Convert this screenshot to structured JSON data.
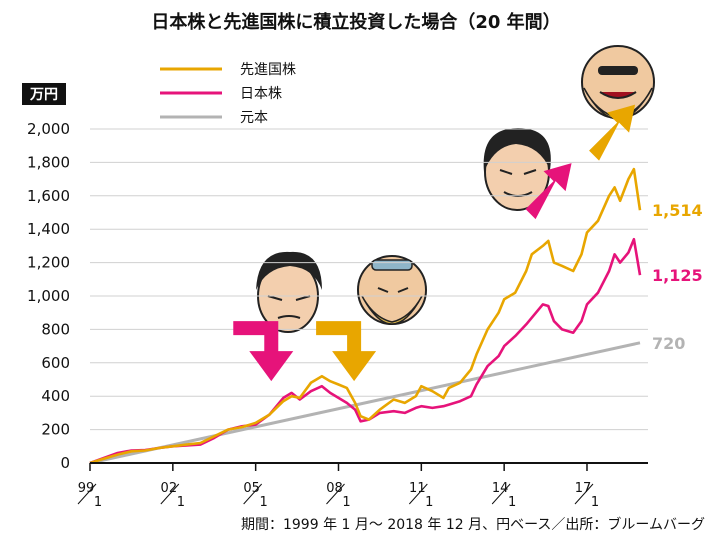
{
  "chart_data": {
    "type": "line",
    "title": "日本株と先進国株に積立投資した場合（20 年間）",
    "unit_label": "万円",
    "source_note": "期間：1999 年 1 月〜 2018 年 12 月、円ベース／出所：ブルームバーグ",
    "ylim": [
      0,
      2000
    ],
    "y_ticks": [
      "0",
      "200",
      "400",
      "600",
      "800",
      "1,000",
      "1,200",
      "1,400",
      "1,600",
      "1,800",
      "2,000"
    ],
    "y_tick_values": [
      0,
      200,
      400,
      600,
      800,
      1000,
      1200,
      1400,
      1600,
      1800,
      2000
    ],
    "x_ticks": [
      {
        "year": "99",
        "month": "1",
        "t": 1999.0
      },
      {
        "year": "02",
        "month": "1",
        "t": 2002.0
      },
      {
        "year": "05",
        "month": "1",
        "t": 2005.0
      },
      {
        "year": "08",
        "month": "1",
        "t": 2008.0
      },
      {
        "year": "11",
        "month": "1",
        "t": 2011.0
      },
      {
        "year": "14",
        "month": "1",
        "t": 2014.0
      },
      {
        "year": "17",
        "month": "1",
        "t": 2017.0
      }
    ],
    "xlim": [
      1999.0,
      2018.92
    ],
    "legend": {
      "placement": "top-left"
    },
    "series": [
      {
        "name": "先進国株",
        "color": "#e8a600",
        "end_label": "1,514",
        "points": [
          [
            1999.0,
            0
          ],
          [
            1999.5,
            25
          ],
          [
            2000.0,
            50
          ],
          [
            2000.5,
            70
          ],
          [
            2001.0,
            75
          ],
          [
            2001.5,
            90
          ],
          [
            2002.0,
            100
          ],
          [
            2002.5,
            110
          ],
          [
            2003.0,
            120
          ],
          [
            2003.5,
            160
          ],
          [
            2004.0,
            200
          ],
          [
            2004.5,
            215
          ],
          [
            2005.0,
            240
          ],
          [
            2005.5,
            290
          ],
          [
            2006.0,
            370
          ],
          [
            2006.3,
            400
          ],
          [
            2006.6,
            390
          ],
          [
            2007.0,
            480
          ],
          [
            2007.4,
            520
          ],
          [
            2007.7,
            490
          ],
          [
            2008.0,
            470
          ],
          [
            2008.3,
            450
          ],
          [
            2008.6,
            360
          ],
          [
            2008.8,
            280
          ],
          [
            2009.1,
            260
          ],
          [
            2009.5,
            320
          ],
          [
            2010.0,
            380
          ],
          [
            2010.4,
            360
          ],
          [
            2010.8,
            400
          ],
          [
            2011.0,
            460
          ],
          [
            2011.4,
            430
          ],
          [
            2011.8,
            390
          ],
          [
            2012.0,
            450
          ],
          [
            2012.4,
            480
          ],
          [
            2012.8,
            560
          ],
          [
            2013.0,
            650
          ],
          [
            2013.4,
            800
          ],
          [
            2013.8,
            900
          ],
          [
            2014.0,
            980
          ],
          [
            2014.4,
            1020
          ],
          [
            2014.8,
            1150
          ],
          [
            2015.0,
            1250
          ],
          [
            2015.4,
            1300
          ],
          [
            2015.6,
            1330
          ],
          [
            2015.8,
            1200
          ],
          [
            2016.1,
            1180
          ],
          [
            2016.5,
            1150
          ],
          [
            2016.8,
            1250
          ],
          [
            2017.0,
            1380
          ],
          [
            2017.4,
            1450
          ],
          [
            2017.8,
            1600
          ],
          [
            2018.0,
            1650
          ],
          [
            2018.2,
            1570
          ],
          [
            2018.5,
            1700
          ],
          [
            2018.7,
            1760
          ],
          [
            2018.92,
            1514
          ]
        ]
      },
      {
        "name": "日本株",
        "color": "#e6137a",
        "end_label": "1,125",
        "points": [
          [
            1999.0,
            0
          ],
          [
            1999.5,
            30
          ],
          [
            2000.0,
            60
          ],
          [
            2000.5,
            75
          ],
          [
            2001.0,
            78
          ],
          [
            2001.5,
            90
          ],
          [
            2002.0,
            100
          ],
          [
            2002.5,
            105
          ],
          [
            2003.0,
            110
          ],
          [
            2003.5,
            150
          ],
          [
            2004.0,
            200
          ],
          [
            2004.5,
            220
          ],
          [
            2005.0,
            230
          ],
          [
            2005.5,
            290
          ],
          [
            2006.0,
            390
          ],
          [
            2006.3,
            420
          ],
          [
            2006.6,
            380
          ],
          [
            2007.0,
            430
          ],
          [
            2007.4,
            460
          ],
          [
            2007.7,
            420
          ],
          [
            2008.0,
            390
          ],
          [
            2008.3,
            360
          ],
          [
            2008.6,
            320
          ],
          [
            2008.8,
            250
          ],
          [
            2009.1,
            260
          ],
          [
            2009.5,
            300
          ],
          [
            2010.0,
            310
          ],
          [
            2010.4,
            300
          ],
          [
            2010.8,
            330
          ],
          [
            2011.0,
            340
          ],
          [
            2011.4,
            330
          ],
          [
            2011.8,
            340
          ],
          [
            2012.0,
            350
          ],
          [
            2012.4,
            370
          ],
          [
            2012.8,
            400
          ],
          [
            2013.0,
            470
          ],
          [
            2013.4,
            580
          ],
          [
            2013.8,
            640
          ],
          [
            2014.0,
            700
          ],
          [
            2014.4,
            760
          ],
          [
            2014.8,
            830
          ],
          [
            2015.0,
            870
          ],
          [
            2015.4,
            950
          ],
          [
            2015.6,
            940
          ],
          [
            2015.8,
            850
          ],
          [
            2016.1,
            800
          ],
          [
            2016.5,
            780
          ],
          [
            2016.8,
            850
          ],
          [
            2017.0,
            950
          ],
          [
            2017.4,
            1020
          ],
          [
            2017.8,
            1150
          ],
          [
            2018.0,
            1250
          ],
          [
            2018.2,
            1200
          ],
          [
            2018.5,
            1260
          ],
          [
            2018.7,
            1340
          ],
          [
            2018.92,
            1125
          ]
        ]
      },
      {
        "name": "元本",
        "color": "#b3b3b3",
        "end_label": "720",
        "points": [
          [
            1999.0,
            0
          ],
          [
            2018.92,
            720
          ]
        ]
      }
    ],
    "annotations": [
      {
        "kind": "arrow",
        "direction": "down",
        "color": "#e6137a",
        "near_t": 2006.0,
        "near_value": 700
      },
      {
        "kind": "arrow",
        "direction": "down",
        "color": "#e8a600",
        "near_t": 2009.0,
        "near_value": 700
      },
      {
        "kind": "arrow",
        "direction": "up",
        "color": "#e6137a",
        "near_t": 2015.5,
        "near_value": 1700
      },
      {
        "kind": "arrow",
        "direction": "up",
        "color": "#e8a600",
        "near_t": 2017.8,
        "near_value": 2050
      }
    ]
  }
}
